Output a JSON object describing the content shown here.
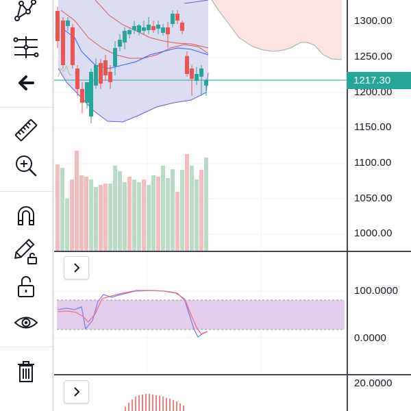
{
  "toolbar": {
    "tools": [
      {
        "icon": "pattern-icon",
        "label": "Patterns"
      },
      {
        "icon": "fib-settings-icon",
        "label": "Fib tools"
      },
      {
        "icon": "back-arrow-icon",
        "label": "Back"
      },
      {
        "icon": "ruler-icon",
        "label": "Measure"
      },
      {
        "icon": "zoom-in-icon",
        "label": "Zoom In"
      },
      {
        "icon": "magnet-icon",
        "label": "Magnet Mode"
      },
      {
        "icon": "lock-drawing-icon",
        "label": "Stay in Drawing Mode"
      },
      {
        "icon": "unlock-icon",
        "label": "Lock All Drawings"
      },
      {
        "icon": "eye-icon",
        "label": "Hide All Drawings"
      },
      {
        "icon": "trash-icon",
        "label": "Remove Drawings"
      }
    ]
  },
  "main_pane": {
    "price_axis_labels": [
      "1300.00",
      "1250.00",
      "1200.00",
      "1150.00",
      "1100.00",
      "1050.00",
      "1000.00"
    ],
    "last_price": "1217.30",
    "colors": {
      "up": "#26a69a",
      "down": "#ef5350",
      "volume_up": "#b8dcc5",
      "volume_down": "#f5bcc0",
      "cloud": "#ffd9d9",
      "band_fill": "#dcdcf2",
      "last_price_line": "#26a69a"
    }
  },
  "stochastic_pane": {
    "axis_labels": [
      "100.0000",
      "0.0000"
    ],
    "expand_label": "expand",
    "colors": {
      "band": "#e1c8ea",
      "k_line": "#7e7ef0",
      "d_line": "#f06b86"
    }
  },
  "macd_pane": {
    "axis_labels": [
      "20.0000"
    ],
    "expand_label": "expand",
    "colors": {
      "histogram": "#ef5350"
    }
  }
}
